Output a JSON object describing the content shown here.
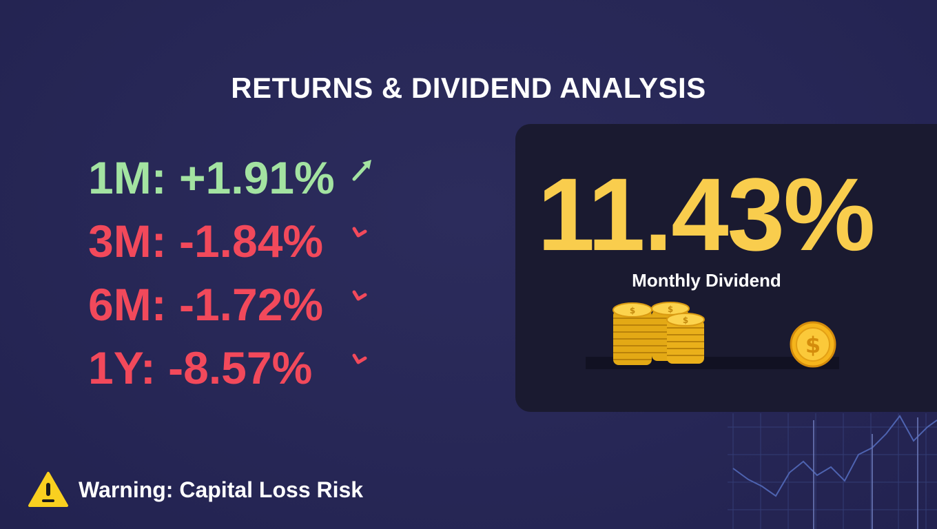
{
  "title": "RETURNS & DIVIDEND ANALYSIS",
  "returns": [
    {
      "period": "1M",
      "text": "1M: +1.91%",
      "value_pct": 1.91,
      "direction": "up",
      "icon": "arrow-up-right-icon"
    },
    {
      "period": "3M",
      "text": "3M: -1.84%",
      "value_pct": -1.84,
      "direction": "down",
      "icon": "arrow-down-right-icon"
    },
    {
      "period": "6M",
      "text": "6M: -1.72%",
      "value_pct": -1.72,
      "direction": "down",
      "icon": "arrow-down-right-icon"
    },
    {
      "period": "1Y",
      "text": "1Y: -8.57%",
      "value_pct": -8.57,
      "direction": "down",
      "icon": "arrow-down-right-icon"
    }
  ],
  "dividend": {
    "value": "11.43%",
    "label": "Monthly Dividend",
    "icons": [
      "coin-stacks-icon",
      "dollar-coin-icon"
    ]
  },
  "warning": {
    "text": "Warning: Capital Loss Risk",
    "icon": "warning-triangle-icon"
  },
  "colors": {
    "background": "#272756",
    "positive": "#a3e3a1",
    "negative": "#f2495b",
    "accent": "#f9cd4d",
    "panel": "#1a1a30"
  }
}
